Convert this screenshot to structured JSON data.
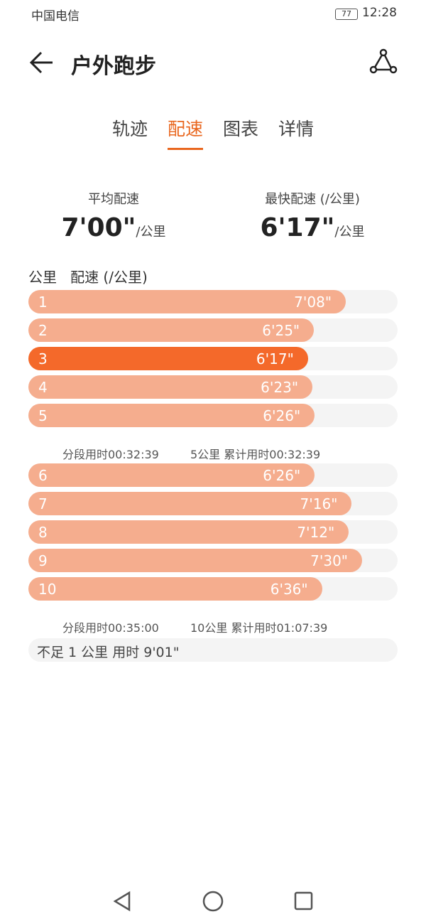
{
  "status": {
    "carrier": "中国电信",
    "battery": "77",
    "time": "12:28"
  },
  "header": {
    "title": "户外跑步"
  },
  "tabs": {
    "items": [
      "轨迹",
      "配速",
      "图表",
      "详情"
    ],
    "active": 1
  },
  "summary": [
    {
      "label": "平均配速",
      "value": "7'00\"",
      "unit": "/公里"
    },
    {
      "label": "最快配速 (/公里)",
      "value": "6'17\"",
      "unit": "/公里"
    }
  ],
  "table": {
    "headers": [
      "公里",
      "配速 (/公里)"
    ],
    "groups": [
      {
        "rows": [
          {
            "km": 1,
            "pace": "7'08\"",
            "seconds": 428
          },
          {
            "km": 2,
            "pace": "6'25\"",
            "seconds": 385
          },
          {
            "km": 3,
            "pace": "6'17\"",
            "seconds": 377
          },
          {
            "km": 4,
            "pace": "6'23\"",
            "seconds": 383
          },
          {
            "km": 5,
            "pace": "6'26\"",
            "seconds": 386
          }
        ],
        "segment": "分段用时00:32:39",
        "cumulative": "5公里 累计用时00:32:39"
      },
      {
        "rows": [
          {
            "km": 6,
            "pace": "6'26\"",
            "seconds": 386
          },
          {
            "km": 7,
            "pace": "7'16\"",
            "seconds": 436
          },
          {
            "km": 8,
            "pace": "7'12\"",
            "seconds": 432
          },
          {
            "km": 9,
            "pace": "7'30\"",
            "seconds": 450
          },
          {
            "km": 10,
            "pace": "6'36\"",
            "seconds": 396
          }
        ],
        "segment": "分段用时00:35:00",
        "cumulative": "10公里 累计用时01:07:39"
      }
    ],
    "remainder": "不足 1 公里 用时 9'01\""
  }
}
